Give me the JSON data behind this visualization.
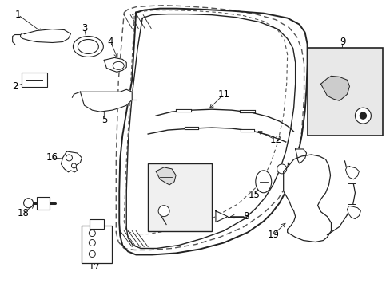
{
  "bg_color": "#ffffff",
  "lc": "#222222",
  "dc": "#555555",
  "box_fill": "#e0e0e0",
  "fig_width": 4.89,
  "fig_height": 3.6,
  "dpi": 100
}
